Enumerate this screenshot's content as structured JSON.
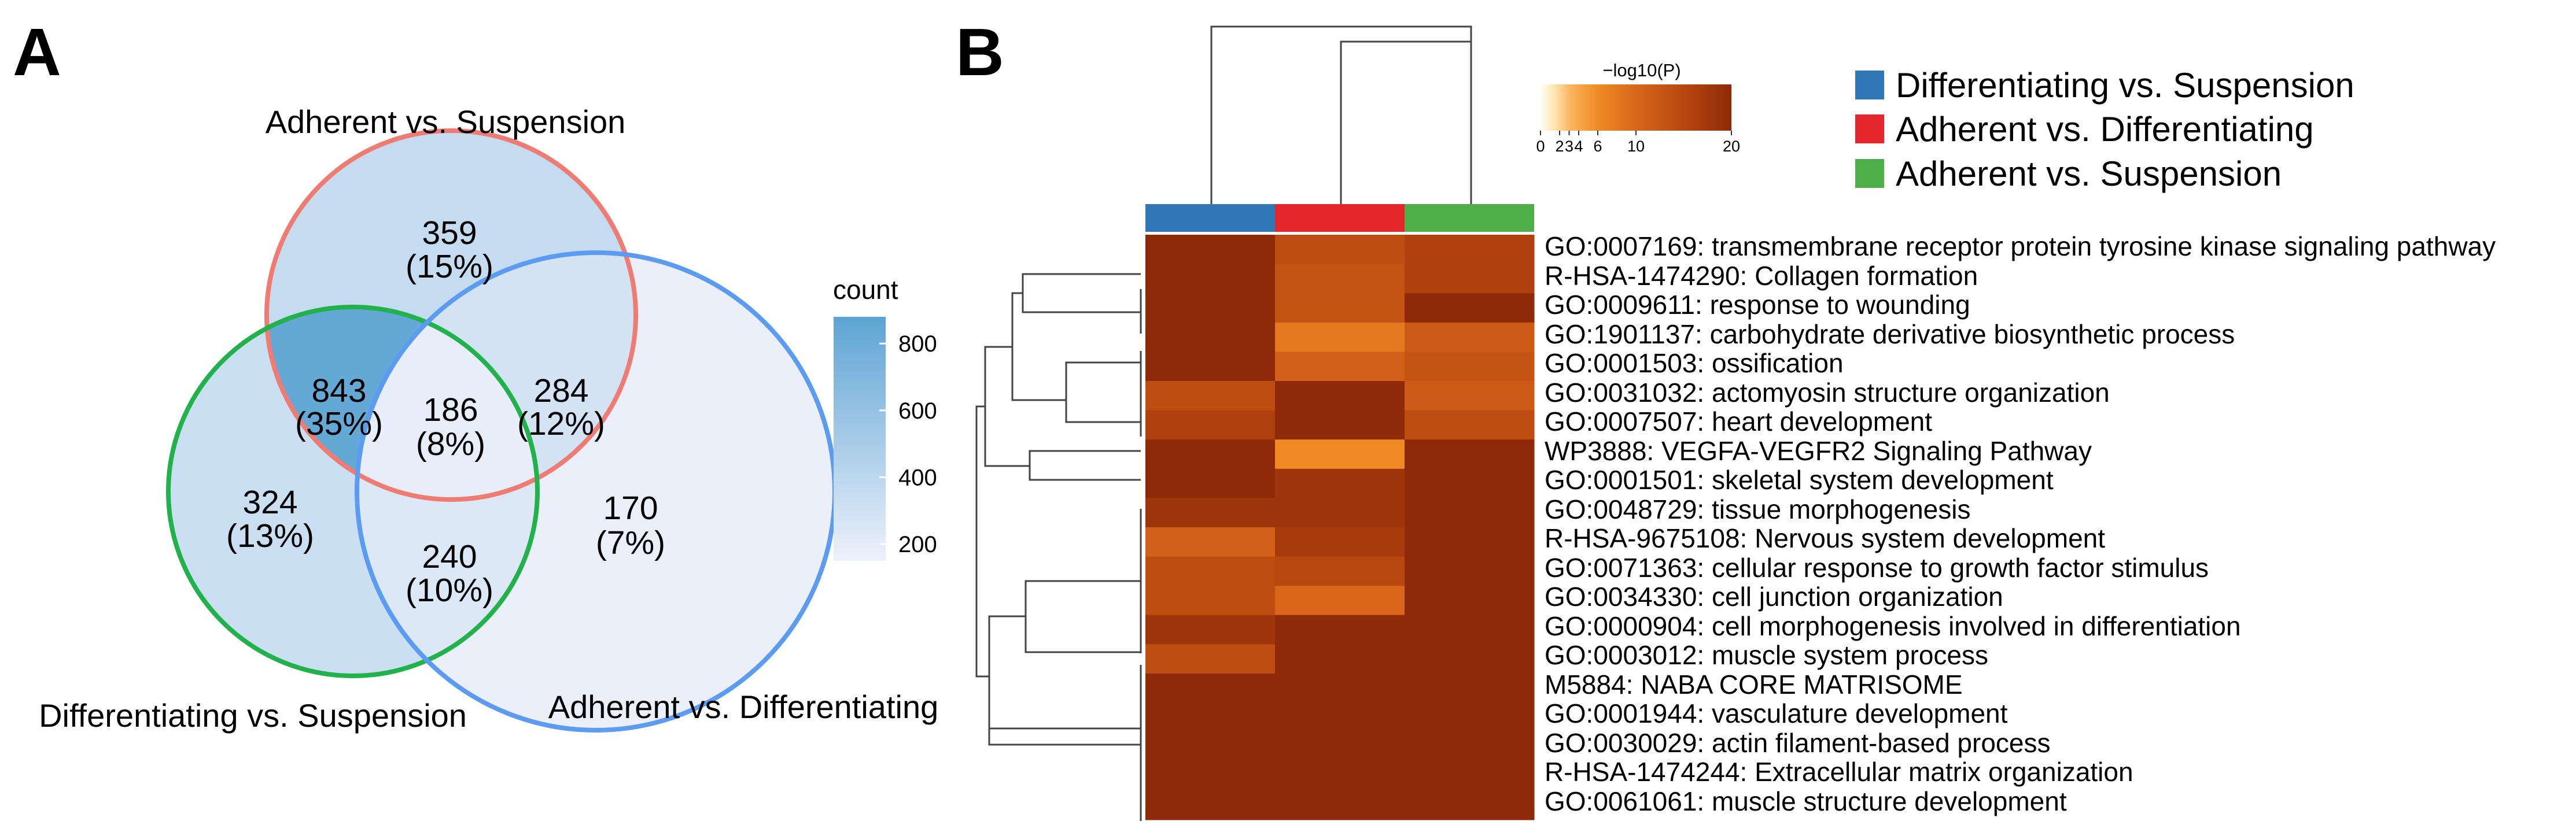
{
  "figure": {
    "panel_a_label": "A",
    "panel_b_label": "B"
  },
  "chart_data": [
    {
      "type": "venn",
      "sets": [
        {
          "name": "Adherent vs. Suspension",
          "color": "#ef7b73"
        },
        {
          "name": "Differentiating vs. Suspension",
          "color": "#22b24c"
        },
        {
          "name": "Adherent vs. Differentiating",
          "color": "#5b9cf2"
        }
      ],
      "regions": [
        {
          "id": "A_only",
          "count": "359",
          "pct": "(15%)",
          "value": 359
        },
        {
          "id": "A_and_D",
          "count": "843",
          "pct": "(35%)",
          "value": 843
        },
        {
          "id": "A_D_Ad",
          "count": "186",
          "pct": "(8%)",
          "value": 186
        },
        {
          "id": "A_and_Ad",
          "count": "284",
          "pct": "(12%)",
          "value": 284
        },
        {
          "id": "D_only",
          "count": "324",
          "pct": "(13%)",
          "value": 324
        },
        {
          "id": "D_and_Ad",
          "count": "240",
          "pct": "(10%)",
          "value": 240
        },
        {
          "id": "Ad_only",
          "count": "170",
          "pct": "(7%)",
          "value": 170
        }
      ],
      "count_legend": {
        "title": "count",
        "ticks": [
          "800",
          "600",
          "400",
          "200"
        ],
        "range": [
          150,
          880
        ],
        "color_low": "#eef1fb",
        "color_high": "#5da4d4"
      }
    },
    {
      "type": "heatmap",
      "columns": [
        {
          "name": "Differentiating vs. Suspension",
          "color": "#2f77b6"
        },
        {
          "name": "Adherent vs. Differentiating",
          "color": "#e4262c"
        },
        {
          "name": "Adherent vs. Suspension",
          "color": "#4eae47"
        }
      ],
      "rows": [
        "GO:0007169: transmembrane receptor protein tyrosine kinase signaling pathway",
        "R-HSA-1474290: Collagen formation",
        "GO:0009611: response to wounding",
        "GO:1901137: carbohydrate derivative biosynthetic process",
        "GO:0001503: ossification",
        "GO:0031032: actomyosin structure organization",
        "GO:0007507: heart development",
        "WP3888: VEGFA-VEGFR2 Signaling Pathway",
        "GO:0001501: skeletal system development",
        "GO:0048729: tissue morphogenesis",
        "R-HSA-9675108: Nervous system development",
        "GO:0071363: cellular response to growth factor stimulus",
        "GO:0034330: cell junction organization",
        "GO:0000904: cell morphogenesis involved in differentiation",
        "GO:0003012: muscle system process",
        "M5884: NABA CORE MATRISOME",
        "GO:0001944: vasculature development",
        "GO:0030029: actin filament-based process",
        "R-HSA-1474244: Extracellular matrix organization",
        "GO:0061061: muscle structure development"
      ],
      "values": [
        [
          20,
          14,
          16
        ],
        [
          20,
          13,
          16
        ],
        [
          20,
          13,
          20
        ],
        [
          20,
          8,
          12
        ],
        [
          20,
          11,
          13
        ],
        [
          14,
          20,
          12
        ],
        [
          16,
          20,
          14
        ],
        [
          20,
          6,
          20
        ],
        [
          20,
          18,
          20
        ],
        [
          18,
          18,
          20
        ],
        [
          11,
          17,
          20
        ],
        [
          14,
          15,
          20
        ],
        [
          14,
          10,
          20
        ],
        [
          18,
          20,
          20
        ],
        [
          14,
          20,
          20
        ],
        [
          20,
          20,
          20
        ],
        [
          20,
          20,
          20
        ],
        [
          20,
          20,
          20
        ],
        [
          20,
          20,
          20
        ],
        [
          20,
          20,
          20
        ]
      ],
      "colorbar": {
        "title": "−log10(P)",
        "ticks": [
          {
            "label": "0",
            "value": 0
          },
          {
            "label": "2",
            "value": 2
          },
          {
            "label": "3",
            "value": 3
          },
          {
            "label": "4",
            "value": 4
          },
          {
            "label": "6",
            "value": 6
          },
          {
            "label": "10",
            "value": 10
          },
          {
            "label": "20",
            "value": 20
          }
        ],
        "range": [
          0,
          20
        ]
      }
    }
  ]
}
